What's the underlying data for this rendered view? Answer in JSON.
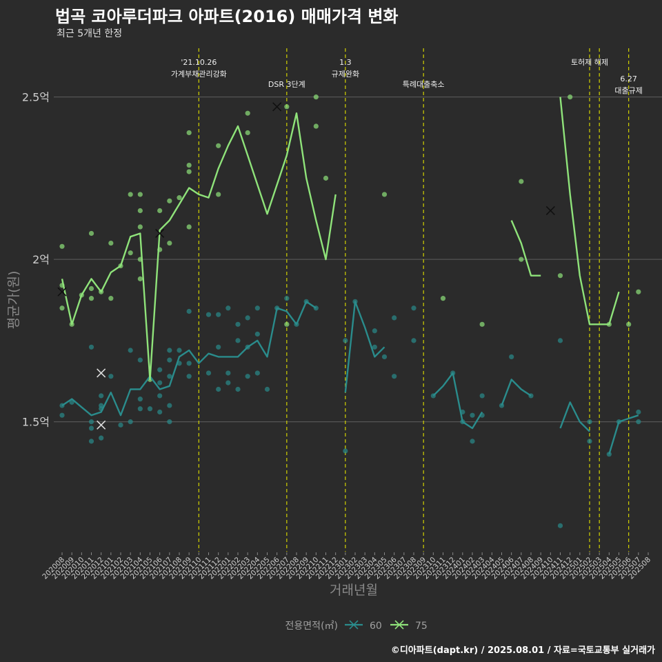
{
  "header": {
    "title": "법곡 코아루더파크 아파트(2016) 매매가격 변화",
    "subtitle": "최근 5개년 한정"
  },
  "credit": "©디아파트(dapt.kr) / 2025.08.01 / 자료=국토교통부 실거래가",
  "colors": {
    "background": "#2b2b2b",
    "grid": "#555555",
    "vline": "#d4d400",
    "s60": "#2a8c8c",
    "s75": "#8fe37a"
  },
  "chart_data": {
    "type": "line",
    "xlabel": "거래년월",
    "ylabel": "평균가(원)",
    "ylim": [
      1.1,
      2.65
    ],
    "yticks": [
      {
        "v": 1.5,
        "label": "1.5억"
      },
      {
        "v": 2.0,
        "label": "2억"
      },
      {
        "v": 2.5,
        "label": "2.5억"
      }
    ],
    "categories": [
      "202008",
      "202009",
      "202010",
      "202011",
      "202012",
      "202101",
      "202102",
      "202103",
      "202104",
      "202105",
      "202106",
      "202107",
      "202108",
      "202109",
      "202110",
      "202111",
      "202112",
      "202201",
      "202202",
      "202203",
      "202204",
      "202205",
      "202206",
      "202207",
      "202208",
      "202209",
      "202210",
      "202211",
      "202212",
      "202301",
      "202302",
      "202303",
      "202304",
      "202305",
      "202306",
      "202307",
      "202308",
      "202309",
      "202310",
      "202311",
      "202312",
      "202401",
      "202402",
      "202403",
      "202404",
      "202405",
      "202406",
      "202407",
      "202408",
      "202409",
      "202410",
      "202411",
      "202412",
      "202501",
      "202502",
      "202503",
      "202504",
      "202505",
      "202506",
      "202507",
      "202508"
    ],
    "legend_title": "전용면적(㎡)",
    "grid": true,
    "series": [
      {
        "name": "60",
        "color": "#2a8c8c",
        "values": [
          1.55,
          1.57,
          1.545,
          1.52,
          1.53,
          1.59,
          1.52,
          1.6,
          1.6,
          1.64,
          1.6,
          1.61,
          1.7,
          1.72,
          1.68,
          1.71,
          1.7,
          1.7,
          1.7,
          1.73,
          1.75,
          1.7,
          1.85,
          1.84,
          1.8,
          1.87,
          1.85,
          null,
          null,
          1.59,
          1.87,
          1.79,
          1.7,
          1.73,
          null,
          null,
          null,
          null,
          1.58,
          1.61,
          1.65,
          1.5,
          1.48,
          1.53,
          null,
          1.55,
          1.63,
          1.6,
          1.58,
          null,
          null,
          1.48,
          1.56,
          1.5,
          1.47,
          null,
          1.4,
          1.5,
          1.51,
          1.52,
          null
        ]
      },
      {
        "name": "75",
        "color": "#8fe37a",
        "values": [
          1.94,
          1.8,
          1.89,
          1.94,
          1.9,
          1.96,
          1.98,
          2.07,
          2.08,
          1.63,
          2.09,
          2.12,
          2.17,
          2.22,
          2.2,
          2.19,
          2.28,
          2.35,
          2.41,
          2.32,
          2.23,
          2.14,
          2.23,
          2.32,
          2.45,
          2.25,
          2.12,
          2.0,
          2.2,
          null,
          null,
          null,
          null,
          null,
          null,
          null,
          1.88,
          null,
          1.65,
          null,
          null,
          null,
          1.8,
          null,
          null,
          null,
          2.12,
          2.05,
          1.95,
          1.95,
          null,
          2.5,
          2.2,
          1.95,
          1.8,
          1.8,
          1.8,
          1.9,
          null,
          null,
          null
        ]
      }
    ],
    "scatter_points": [
      {
        "x": "202008",
        "y": 1.55,
        "s": 0
      },
      {
        "x": "202008",
        "y": 1.52,
        "s": 0
      },
      {
        "x": "202008",
        "y": 1.85,
        "s": 1
      },
      {
        "x": "202008",
        "y": 2.04,
        "s": 1
      },
      {
        "x": "202008",
        "y": 1.92,
        "s": 1
      },
      {
        "x": "202009",
        "y": 1.56,
        "s": 0
      },
      {
        "x": "202009",
        "y": 1.8,
        "s": 1
      },
      {
        "x": "202010",
        "y": 1.89,
        "s": 1
      },
      {
        "x": "202011",
        "y": 1.48,
        "s": 0
      },
      {
        "x": "202011",
        "y": 1.44,
        "s": 0
      },
      {
        "x": "202011",
        "y": 1.5,
        "s": 0
      },
      {
        "x": "202011",
        "y": 1.73,
        "s": 0
      },
      {
        "x": "202011",
        "y": 2.08,
        "s": 1
      },
      {
        "x": "202011",
        "y": 1.91,
        "s": 1
      },
      {
        "x": "202011",
        "y": 1.88,
        "s": 1
      },
      {
        "x": "202012",
        "y": 1.58,
        "s": 0
      },
      {
        "x": "202012",
        "y": 1.55,
        "s": 0
      },
      {
        "x": "202012",
        "y": 1.54,
        "s": 0
      },
      {
        "x": "202012",
        "y": 1.45,
        "s": 0
      },
      {
        "x": "202012",
        "y": 1.9,
        "s": 1
      },
      {
        "x": "202101",
        "y": 1.64,
        "s": 0
      },
      {
        "x": "202101",
        "y": 2.05,
        "s": 1
      },
      {
        "x": "202101",
        "y": 1.88,
        "s": 1
      },
      {
        "x": "202102",
        "y": 1.49,
        "s": 0
      },
      {
        "x": "202102",
        "y": 1.98,
        "s": 1
      },
      {
        "x": "202103",
        "y": 1.72,
        "s": 0
      },
      {
        "x": "202103",
        "y": 1.5,
        "s": 0
      },
      {
        "x": "202103",
        "y": 2.2,
        "s": 1
      },
      {
        "x": "202103",
        "y": 2.02,
        "s": 1
      },
      {
        "x": "202104",
        "y": 1.69,
        "s": 0
      },
      {
        "x": "202104",
        "y": 1.57,
        "s": 0
      },
      {
        "x": "202104",
        "y": 1.54,
        "s": 0
      },
      {
        "x": "202104",
        "y": 2.2,
        "s": 1
      },
      {
        "x": "202104",
        "y": 2.15,
        "s": 1
      },
      {
        "x": "202104",
        "y": 2.1,
        "s": 1
      },
      {
        "x": "202104",
        "y": 2.0,
        "s": 1
      },
      {
        "x": "202104",
        "y": 1.94,
        "s": 1
      },
      {
        "x": "202105",
        "y": 1.54,
        "s": 0
      },
      {
        "x": "202105",
        "y": 1.63,
        "s": 1
      },
      {
        "x": "202106",
        "y": 1.66,
        "s": 0
      },
      {
        "x": "202106",
        "y": 1.62,
        "s": 0
      },
      {
        "x": "202106",
        "y": 1.58,
        "s": 0
      },
      {
        "x": "202106",
        "y": 1.53,
        "s": 0
      },
      {
        "x": "202106",
        "y": 2.15,
        "s": 1
      },
      {
        "x": "202106",
        "y": 2.03,
        "s": 1
      },
      {
        "x": "202107",
        "y": 1.72,
        "s": 0
      },
      {
        "x": "202107",
        "y": 1.69,
        "s": 0
      },
      {
        "x": "202107",
        "y": 1.64,
        "s": 0
      },
      {
        "x": "202107",
        "y": 1.55,
        "s": 0
      },
      {
        "x": "202107",
        "y": 1.5,
        "s": 0
      },
      {
        "x": "202107",
        "y": 2.18,
        "s": 1
      },
      {
        "x": "202107",
        "y": 2.05,
        "s": 1
      },
      {
        "x": "202108",
        "y": 1.72,
        "s": 0
      },
      {
        "x": "202108",
        "y": 1.68,
        "s": 0
      },
      {
        "x": "202108",
        "y": 2.19,
        "s": 1
      },
      {
        "x": "202109",
        "y": 1.84,
        "s": 0
      },
      {
        "x": "202109",
        "y": 1.68,
        "s": 0
      },
      {
        "x": "202109",
        "y": 1.64,
        "s": 0
      },
      {
        "x": "202109",
        "y": 2.39,
        "s": 1
      },
      {
        "x": "202109",
        "y": 2.29,
        "s": 1
      },
      {
        "x": "202109",
        "y": 2.27,
        "s": 1
      },
      {
        "x": "202109",
        "y": 2.1,
        "s": 1
      },
      {
        "x": "202111",
        "y": 1.83,
        "s": 0
      },
      {
        "x": "202111",
        "y": 1.65,
        "s": 0
      },
      {
        "x": "202112",
        "y": 1.83,
        "s": 0
      },
      {
        "x": "202112",
        "y": 1.73,
        "s": 0
      },
      {
        "x": "202112",
        "y": 1.6,
        "s": 0
      },
      {
        "x": "202112",
        "y": 2.35,
        "s": 1
      },
      {
        "x": "202112",
        "y": 2.2,
        "s": 1
      },
      {
        "x": "202201",
        "y": 1.85,
        "s": 0
      },
      {
        "x": "202201",
        "y": 1.65,
        "s": 0
      },
      {
        "x": "202201",
        "y": 1.62,
        "s": 0
      },
      {
        "x": "202202",
        "y": 1.8,
        "s": 0
      },
      {
        "x": "202202",
        "y": 1.75,
        "s": 0
      },
      {
        "x": "202202",
        "y": 1.6,
        "s": 0
      },
      {
        "x": "202203",
        "y": 1.82,
        "s": 0
      },
      {
        "x": "202203",
        "y": 1.73,
        "s": 0
      },
      {
        "x": "202203",
        "y": 1.64,
        "s": 0
      },
      {
        "x": "202203",
        "y": 2.45,
        "s": 1
      },
      {
        "x": "202203",
        "y": 2.39,
        "s": 1
      },
      {
        "x": "202204",
        "y": 1.85,
        "s": 0
      },
      {
        "x": "202204",
        "y": 1.77,
        "s": 0
      },
      {
        "x": "202204",
        "y": 1.65,
        "s": 0
      },
      {
        "x": "202205",
        "y": 1.6,
        "s": 0
      },
      {
        "x": "202206",
        "y": 1.85,
        "s": 0
      },
      {
        "x": "202207",
        "y": 1.88,
        "s": 0
      },
      {
        "x": "202207",
        "y": 2.47,
        "s": 1
      },
      {
        "x": "202207",
        "y": 1.8,
        "s": 1
      },
      {
        "x": "202208",
        "y": 1.8,
        "s": 0
      },
      {
        "x": "202209",
        "y": 1.87,
        "s": 0
      },
      {
        "x": "202210",
        "y": 1.85,
        "s": 0
      },
      {
        "x": "202210",
        "y": 2.5,
        "s": 1
      },
      {
        "x": "202210",
        "y": 2.41,
        "s": 1
      },
      {
        "x": "202211",
        "y": 2.25,
        "s": 1
      },
      {
        "x": "202301",
        "y": 1.75,
        "s": 0
      },
      {
        "x": "202301",
        "y": 1.41,
        "s": 0
      },
      {
        "x": "202302",
        "y": 1.87,
        "s": 0
      },
      {
        "x": "202304",
        "y": 1.78,
        "s": 0
      },
      {
        "x": "202304",
        "y": 1.73,
        "s": 0
      },
      {
        "x": "202305",
        "y": 1.7,
        "s": 0
      },
      {
        "x": "202305",
        "y": 2.2,
        "s": 1
      },
      {
        "x": "202306",
        "y": 1.82,
        "s": 0
      },
      {
        "x": "202306",
        "y": 1.64,
        "s": 0
      },
      {
        "x": "202308",
        "y": 1.85,
        "s": 0
      },
      {
        "x": "202308",
        "y": 1.75,
        "s": 0
      },
      {
        "x": "202310",
        "y": 1.58,
        "s": 0
      },
      {
        "x": "202311",
        "y": 1.88,
        "s": 1
      },
      {
        "x": "202312",
        "y": 1.65,
        "s": 0
      },
      {
        "x": "202401",
        "y": 1.53,
        "s": 0
      },
      {
        "x": "202401",
        "y": 1.5,
        "s": 0
      },
      {
        "x": "202402",
        "y": 1.52,
        "s": 0
      },
      {
        "x": "202402",
        "y": 1.44,
        "s": 0
      },
      {
        "x": "202403",
        "y": 1.58,
        "s": 0
      },
      {
        "x": "202403",
        "y": 1.52,
        "s": 0
      },
      {
        "x": "202403",
        "y": 1.8,
        "s": 1
      },
      {
        "x": "202405",
        "y": 1.55,
        "s": 0
      },
      {
        "x": "202406",
        "y": 1.7,
        "s": 0
      },
      {
        "x": "202407",
        "y": 2.24,
        "s": 1
      },
      {
        "x": "202407",
        "y": 2.0,
        "s": 1
      },
      {
        "x": "202408",
        "y": 1.58,
        "s": 0
      },
      {
        "x": "202411",
        "y": 1.75,
        "s": 0
      },
      {
        "x": "202411",
        "y": 1.18,
        "s": 0
      },
      {
        "x": "202411",
        "y": 1.95,
        "s": 1
      },
      {
        "x": "202412",
        "y": 2.5,
        "s": 1
      },
      {
        "x": "202502",
        "y": 1.5,
        "s": 0
      },
      {
        "x": "202502",
        "y": 1.44,
        "s": 0
      },
      {
        "x": "202504",
        "y": 1.4,
        "s": 0
      },
      {
        "x": "202504",
        "y": 1.8,
        "s": 1
      },
      {
        "x": "202505",
        "y": 1.5,
        "s": 0
      },
      {
        "x": "202506",
        "y": 1.8,
        "s": 1
      },
      {
        "x": "202507",
        "y": 1.53,
        "s": 0
      },
      {
        "x": "202507",
        "y": 1.5,
        "s": 0
      },
      {
        "x": "202507",
        "y": 1.9,
        "s": 1
      }
    ],
    "cross_markers": [
      {
        "x": "202008",
        "y": 1.9,
        "s": 1
      },
      {
        "x": "202012",
        "y": 1.65,
        "s": 0
      },
      {
        "x": "202012",
        "y": 1.49,
        "s": 0
      },
      {
        "x": "202106",
        "y": 2.08,
        "s": 1
      },
      {
        "x": "202206",
        "y": 2.47,
        "s": 1
      },
      {
        "x": "202410",
        "y": 2.15,
        "s": 1
      }
    ],
    "events": [
      {
        "x": "202110",
        "lines": [
          "'21.10.26",
          "가계부채관리강화"
        ],
        "level": 0
      },
      {
        "x": "202207",
        "lines": [
          "DSR 3단계"
        ],
        "level": 1
      },
      {
        "x": "202301",
        "lines": [
          "1.3",
          "규제완화"
        ],
        "level": 0
      },
      {
        "x": "202309",
        "lines": [
          "특례대출축소"
        ],
        "level": 1
      },
      {
        "x": "202502",
        "lines": [
          "토허제 해제"
        ],
        "level": 0
      },
      {
        "x": "202503",
        "lines": [],
        "level": 0
      },
      {
        "x": "202506",
        "lines": [
          "6.27",
          "대출규제"
        ],
        "level": 1
      }
    ]
  }
}
